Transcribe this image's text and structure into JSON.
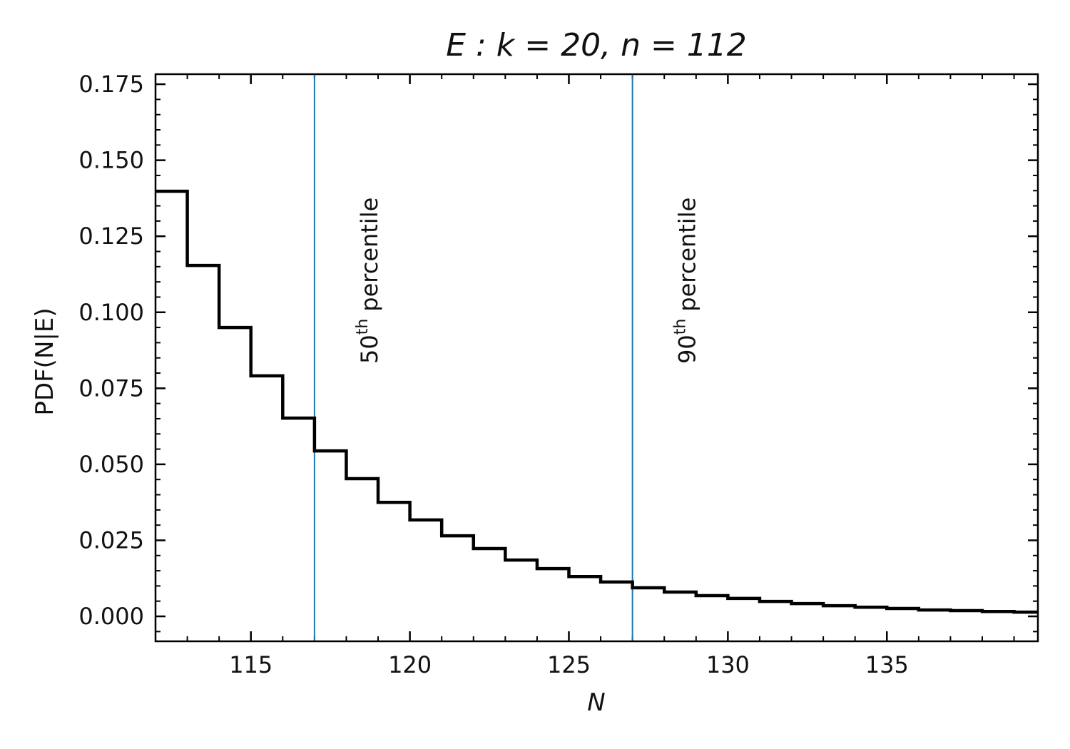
{
  "chart_data": {
    "type": "step",
    "title": "E :  k = 20,  n = 112",
    "x_label": "N",
    "y_label": "PDF(N|E)",
    "x": [
      112,
      113,
      114,
      115,
      116,
      117,
      118,
      119,
      120,
      121,
      122,
      123,
      124,
      125,
      126,
      127,
      128,
      129,
      130,
      131,
      132,
      133,
      134,
      135,
      136,
      137,
      138,
      139
    ],
    "values": [
      0.1398,
      0.1154,
      0.095,
      0.0791,
      0.0652,
      0.0544,
      0.0453,
      0.0375,
      0.0317,
      0.0265,
      0.0223,
      0.0185,
      0.0157,
      0.0131,
      0.0113,
      0.0094,
      0.008,
      0.0068,
      0.0059,
      0.0049,
      0.0042,
      0.0035,
      0.003,
      0.0026,
      0.0021,
      0.0019,
      0.0016,
      0.0014
    ],
    "color": "#000000",
    "xlim": [
      112,
      139.75
    ],
    "ylim": [
      -0.0082,
      0.1783
    ],
    "xticks": [
      115,
      120,
      125,
      130,
      135
    ],
    "yticks": [
      {
        "value": 0,
        "label": "0.000"
      },
      {
        "value": 0.025,
        "label": "0.025"
      },
      {
        "value": 0.05,
        "label": "0.050"
      },
      {
        "value": 0.075,
        "label": "0.075"
      },
      {
        "value": 0.1,
        "label": "0.100"
      },
      {
        "value": 0.125,
        "label": "0.125"
      },
      {
        "value": 0.15,
        "label": "0.150"
      },
      {
        "value": 0.175,
        "label": "0.175"
      }
    ],
    "xminorticks": [
      113,
      114,
      116,
      117,
      118,
      119,
      121,
      122,
      123,
      124,
      126,
      127,
      128,
      129,
      131,
      132,
      133,
      134,
      136,
      137,
      138,
      139
    ],
    "yminorticks": [
      -0.005,
      0.005,
      0.01,
      0.015,
      0.02,
      0.03,
      0.035,
      0.04,
      0.045,
      0.055,
      0.06,
      0.065,
      0.07,
      0.08,
      0.085,
      0.09,
      0.095,
      0.105,
      0.11,
      0.115,
      0.12,
      0.13,
      0.135,
      0.14,
      0.145,
      0.155,
      0.16,
      0.165,
      0.17
    ],
    "vlines": [
      {
        "x": 117,
        "color": "#1f77b4",
        "base": "50",
        "sup": "th",
        "text": "percentile"
      },
      {
        "x": 127,
        "color": "#1f77b4",
        "base": "90",
        "sup": "th",
        "text": "percentile"
      }
    ]
  }
}
